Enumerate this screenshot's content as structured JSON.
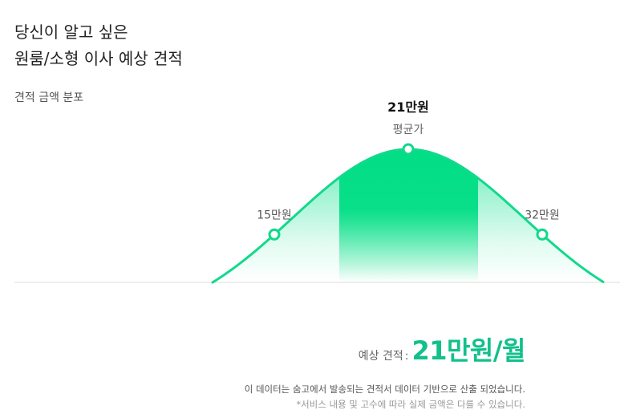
{
  "header": {
    "title_line1": "당신이 알고 싶은",
    "title_line2": "원룸/소형 이사 예상 견적"
  },
  "chart_data": {
    "type": "area",
    "title": "견적 금액 분포",
    "points": [
      {
        "label": "15만원",
        "value": 15,
        "caption": ""
      },
      {
        "label": "21만원",
        "value": 21,
        "caption": "평균가"
      },
      {
        "label": "32만원",
        "value": 32,
        "caption": ""
      }
    ],
    "mean": 21,
    "unit": "만원",
    "grid": false,
    "legend": "none",
    "colors": {
      "curve": "#12d98c",
      "fill": "#00e08a",
      "band": "#00de84",
      "baseline": "#dddddd",
      "marker_fill": "#ffffff"
    }
  },
  "summary": {
    "label": "예상 견적",
    "separator": ":",
    "value": "21만원/월"
  },
  "notes": {
    "line1": "이 데이터는 숨고에서 발송되는 견적서 데이터 기반으로 산출 되었습니다.",
    "line2": "*서비스 내용 및 고수에 따라 실제 금액은 다를 수 있습니다."
  }
}
